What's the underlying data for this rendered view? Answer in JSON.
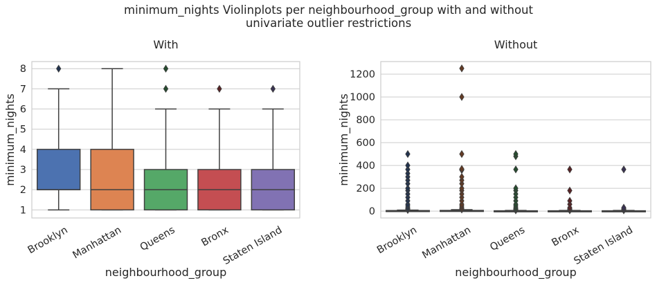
{
  "figure": {
    "suptitle_line1": "minimum_nights Violinplots per neighbourhood_group with and without",
    "suptitle_line2": "univariate outlier restrictions"
  },
  "chart_data": [
    {
      "type": "box",
      "title": "With",
      "xlabel": "neighbourhood_group",
      "ylabel": "minimum_nights",
      "categories": [
        "Brooklyn",
        "Manhattan",
        "Queens",
        "Bronx",
        "Staten Island"
      ],
      "ylim": [
        0.6,
        8.35
      ],
      "yticks": [
        1,
        2,
        3,
        4,
        5,
        6,
        7,
        8
      ],
      "grid": "y",
      "colors": [
        "#4c72b0",
        "#dd8452",
        "#55a868",
        "#c44e52",
        "#8172b3"
      ],
      "boxes": [
        {
          "min": 1,
          "q1": 2,
          "median": 2,
          "q3": 4,
          "max": 7,
          "outliers": [
            8
          ]
        },
        {
          "min": 1,
          "q1": 1,
          "median": 2,
          "q3": 4,
          "max": 8,
          "outliers": []
        },
        {
          "min": 1,
          "q1": 1,
          "median": 2,
          "q3": 3,
          "max": 6,
          "outliers": [
            7,
            8
          ]
        },
        {
          "min": 1,
          "q1": 1,
          "median": 2,
          "q3": 3,
          "max": 6,
          "outliers": [
            7
          ]
        },
        {
          "min": 1,
          "q1": 1,
          "median": 2,
          "q3": 3,
          "max": 6,
          "outliers": [
            7
          ]
        }
      ]
    },
    {
      "type": "box",
      "title": "Without",
      "xlabel": "neighbourhood_group",
      "ylabel": "minimum_nights",
      "categories": [
        "Brooklyn",
        "Manhattan",
        "Queens",
        "Bronx",
        "Staten Island"
      ],
      "ylim": [
        -60,
        1310
      ],
      "yticks": [
        0,
        200,
        400,
        600,
        800,
        1000,
        1200
      ],
      "grid": "y",
      "colors": [
        "#4c72b0",
        "#dd8452",
        "#55a868",
        "#c44e52",
        "#8172b3"
      ],
      "boxes": [
        {
          "min": 1,
          "q1": 2,
          "median": 3,
          "q3": 5,
          "max": 9,
          "outliers": [
            10,
            14,
            20,
            30,
            45,
            60,
            90,
            120,
            150,
            180,
            200,
            240,
            270,
            300,
            330,
            365,
            400,
            500
          ]
        },
        {
          "min": 1,
          "q1": 1,
          "median": 3,
          "q3": 6,
          "max": 13,
          "outliers": [
            14,
            20,
            30,
            45,
            60,
            90,
            120,
            150,
            180,
            200,
            240,
            270,
            300,
            360,
            365,
            370,
            500,
            1000,
            1250
          ]
        },
        {
          "min": 1,
          "q1": 1,
          "median": 2,
          "q3": 3,
          "max": 6,
          "outliers": [
            7,
            10,
            14,
            20,
            30,
            45,
            60,
            90,
            120,
            150,
            180,
            200,
            365,
            480,
            500
          ]
        },
        {
          "min": 1,
          "q1": 1,
          "median": 2,
          "q3": 3,
          "max": 6,
          "outliers": [
            7,
            10,
            14,
            20,
            30,
            60,
            90,
            180,
            365
          ]
        },
        {
          "min": 1,
          "q1": 1,
          "median": 2,
          "q3": 3,
          "max": 6,
          "outliers": [
            7,
            10,
            14,
            20,
            30,
            365
          ]
        }
      ]
    }
  ]
}
